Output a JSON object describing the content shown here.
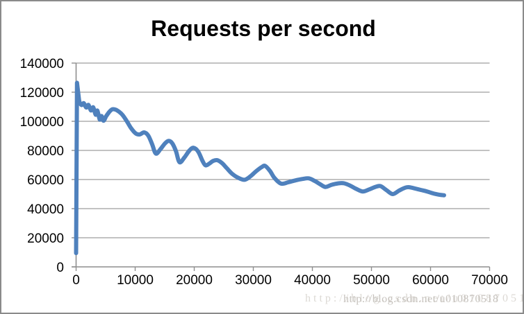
{
  "chart_data": {
    "type": "line",
    "title": "Requests per second",
    "xlabel": "",
    "ylabel": "",
    "xlim": [
      0,
      70000
    ],
    "ylim": [
      0,
      140000
    ],
    "x_ticks": [
      0,
      10000,
      20000,
      30000,
      40000,
      50000,
      60000,
      70000
    ],
    "y_ticks": [
      0,
      20000,
      40000,
      60000,
      80000,
      100000,
      120000,
      140000
    ],
    "grid": "horizontal",
    "legend": "none",
    "series": [
      {
        "name": "Requests per second",
        "color": "#4f81bd",
        "points": [
          [
            0,
            9500
          ],
          [
            150,
            126500
          ],
          [
            500,
            114500
          ],
          [
            900,
            111200
          ],
          [
            1300,
            112500
          ],
          [
            1700,
            109500
          ],
          [
            2100,
            111300
          ],
          [
            2500,
            107500
          ],
          [
            2900,
            109600
          ],
          [
            3300,
            104500
          ],
          [
            3600,
            107400
          ],
          [
            4000,
            101200
          ],
          [
            4300,
            103600
          ],
          [
            4650,
            100400
          ],
          [
            5100,
            103500
          ],
          [
            5600,
            106400
          ],
          [
            6100,
            108200
          ],
          [
            6700,
            108000
          ],
          [
            7300,
            106500
          ],
          [
            7900,
            104200
          ],
          [
            8600,
            100000
          ],
          [
            9300,
            95300
          ],
          [
            10100,
            91600
          ],
          [
            10800,
            91000
          ],
          [
            11500,
            92400
          ],
          [
            12200,
            90300
          ],
          [
            12900,
            84000
          ],
          [
            13500,
            77800
          ],
          [
            14300,
            81000
          ],
          [
            15100,
            85000
          ],
          [
            15700,
            86500
          ],
          [
            16300,
            84800
          ],
          [
            16900,
            79500
          ],
          [
            17500,
            71900
          ],
          [
            18300,
            75000
          ],
          [
            19200,
            80000
          ],
          [
            19900,
            81800
          ],
          [
            20700,
            79000
          ],
          [
            21400,
            72800
          ],
          [
            21900,
            69800
          ],
          [
            22500,
            70800
          ],
          [
            23200,
            72800
          ],
          [
            23900,
            73300
          ],
          [
            24700,
            71300
          ],
          [
            25500,
            67800
          ],
          [
            26400,
            64000
          ],
          [
            27400,
            61300
          ],
          [
            28500,
            59800
          ],
          [
            29500,
            62200
          ],
          [
            30500,
            65800
          ],
          [
            31400,
            68500
          ],
          [
            32000,
            69400
          ],
          [
            32800,
            66000
          ],
          [
            33600,
            61000
          ],
          [
            34700,
            57200
          ],
          [
            35900,
            58100
          ],
          [
            37100,
            59400
          ],
          [
            38300,
            60400
          ],
          [
            39400,
            60800
          ],
          [
            40400,
            59000
          ],
          [
            41300,
            56800
          ],
          [
            42200,
            54900
          ],
          [
            43200,
            56300
          ],
          [
            44400,
            57400
          ],
          [
            45400,
            57400
          ],
          [
            46400,
            55800
          ],
          [
            47400,
            53600
          ],
          [
            48500,
            51800
          ],
          [
            49600,
            53200
          ],
          [
            50600,
            54800
          ],
          [
            51500,
            55500
          ],
          [
            52500,
            52800
          ],
          [
            53600,
            50000
          ],
          [
            54700,
            52500
          ],
          [
            55700,
            54400
          ],
          [
            56400,
            54700
          ],
          [
            57400,
            53800
          ],
          [
            58400,
            52800
          ],
          [
            59400,
            51800
          ],
          [
            60400,
            50500
          ],
          [
            61400,
            49600
          ],
          [
            62300,
            49200
          ]
        ]
      }
    ]
  },
  "watermark": {
    "text1": "http://blog.csdn.net/u010870518",
    "text2": "http://blog.csdn.net/u010870518"
  },
  "colors": {
    "line": "#4f81bd",
    "grid": "#9d9d9d",
    "axis": "#8e8e8e",
    "border": "#8a8a8a",
    "background": "#ffffff",
    "title_text": "#000000",
    "tick_text": "#000000"
  }
}
